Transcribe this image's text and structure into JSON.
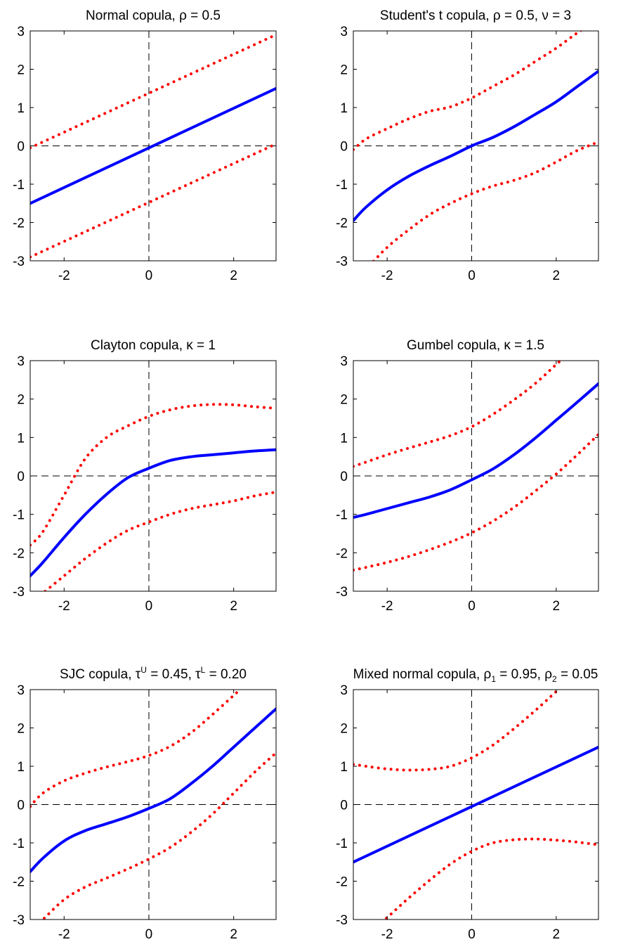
{
  "colors": {
    "mean": "#0000ff",
    "bands": "#ff0000",
    "axes": "#000000",
    "reference": "#000000"
  },
  "chart_data": [
    {
      "type": "line",
      "title": {
        "parts": [
          {
            "text": "Normal copula,  ρ = 0.5"
          }
        ]
      },
      "xlim": [
        -2.8,
        3
      ],
      "ylim": [
        -3,
        3
      ],
      "xticks": [
        -2,
        0,
        2
      ],
      "yticks": [
        -3,
        -2,
        -1,
        0,
        1,
        2,
        3
      ],
      "grid": false,
      "reference_lines": {
        "x": 0,
        "y": 0,
        "style": "dashed"
      },
      "series": [
        {
          "style": "solid",
          "color": "#0000ff",
          "x": [
            -2.8,
            3
          ],
          "y": [
            -1.5,
            1.5
          ]
        },
        {
          "style": "dotted",
          "color": "#ff0000",
          "x": [
            -2.8,
            3
          ],
          "y": [
            -0.05,
            2.9
          ]
        },
        {
          "style": "dotted",
          "color": "#ff0000",
          "x": [
            -2.8,
            3
          ],
          "y": [
            -2.9,
            0.05
          ]
        }
      ]
    },
    {
      "type": "line",
      "title": {
        "parts": [
          {
            "text": "Student's t copula,  ρ = 0.5,  ν = 3"
          }
        ]
      },
      "xlim": [
        -2.8,
        3
      ],
      "ylim": [
        -3,
        3
      ],
      "xticks": [
        -2,
        0,
        2
      ],
      "yticks": [
        -3,
        -2,
        -1,
        0,
        1,
        2,
        3
      ],
      "grid": false,
      "reference_lines": {
        "x": 0,
        "y": 0,
        "style": "dashed"
      },
      "series": [
        {
          "style": "solid",
          "color": "#0000ff",
          "x": [
            -2.8,
            -2.5,
            -2,
            -1.5,
            -1,
            -0.5,
            0,
            0.5,
            1,
            1.5,
            2,
            2.5,
            3
          ],
          "y": [
            -1.95,
            -1.6,
            -1.15,
            -0.8,
            -0.52,
            -0.27,
            0,
            0.22,
            0.5,
            0.82,
            1.15,
            1.55,
            1.95
          ]
        },
        {
          "style": "dotted",
          "color": "#ff0000",
          "x": [
            -2.8,
            -2.5,
            -2,
            -1.5,
            -1,
            -0.5,
            0,
            0.5,
            1,
            1.5,
            2,
            2.5,
            3
          ],
          "y": [
            -0.1,
            0.18,
            0.45,
            0.7,
            0.9,
            1.02,
            1.25,
            1.55,
            1.85,
            2.2,
            2.55,
            2.95,
            3.3
          ]
        },
        {
          "style": "dotted",
          "color": "#ff0000",
          "x": [
            -2.8,
            -2.5,
            -2,
            -1.5,
            -1,
            -0.5,
            0,
            0.5,
            1,
            1.5,
            2,
            2.5,
            3
          ],
          "y": [
            -3.4,
            -3.2,
            -2.65,
            -2.2,
            -1.8,
            -1.5,
            -1.25,
            -1.05,
            -0.9,
            -0.7,
            -0.42,
            -0.12,
            0.1
          ]
        }
      ]
    },
    {
      "type": "line",
      "title": {
        "parts": [
          {
            "text": "Clayton copula,  κ = 1"
          }
        ]
      },
      "xlim": [
        -2.8,
        3
      ],
      "ylim": [
        -3,
        3
      ],
      "xticks": [
        -2,
        0,
        2
      ],
      "yticks": [
        -3,
        -2,
        -1,
        0,
        1,
        2,
        3
      ],
      "grid": false,
      "reference_lines": {
        "x": 0,
        "y": 0,
        "style": "dashed"
      },
      "series": [
        {
          "style": "solid",
          "color": "#0000ff",
          "x": [
            -2.8,
            -2.5,
            -2,
            -1.5,
            -1,
            -0.5,
            0,
            0.5,
            1,
            1.5,
            2,
            2.5,
            3
          ],
          "y": [
            -2.6,
            -2.25,
            -1.6,
            -1.0,
            -0.48,
            -0.05,
            0.2,
            0.4,
            0.5,
            0.55,
            0.6,
            0.65,
            0.68
          ]
        },
        {
          "style": "dotted",
          "color": "#ff0000",
          "x": [
            -2.8,
            -2.5,
            -2,
            -1.5,
            -1,
            -0.5,
            0,
            0.5,
            1,
            1.5,
            2,
            2.5,
            3
          ],
          "y": [
            -1.8,
            -1.45,
            -0.5,
            0.45,
            1.0,
            1.3,
            1.55,
            1.72,
            1.82,
            1.86,
            1.85,
            1.8,
            1.76
          ]
        },
        {
          "style": "dotted",
          "color": "#ff0000",
          "x": [
            -2.8,
            -2.5,
            -2,
            -1.5,
            -1,
            -0.5,
            0,
            0.5,
            1,
            1.5,
            2,
            2.5,
            3
          ],
          "y": [
            -3.3,
            -3.05,
            -2.6,
            -2.15,
            -1.75,
            -1.42,
            -1.2,
            -1.0,
            -0.85,
            -0.75,
            -0.65,
            -0.52,
            -0.42
          ]
        }
      ]
    },
    {
      "type": "line",
      "title": {
        "parts": [
          {
            "text": "Gumbel copula,  κ = 1.5"
          }
        ]
      },
      "xlim": [
        -2.8,
        3
      ],
      "ylim": [
        -3,
        3
      ],
      "xticks": [
        -2,
        0,
        2
      ],
      "yticks": [
        -3,
        -2,
        -1,
        0,
        1,
        2,
        3
      ],
      "grid": false,
      "reference_lines": {
        "x": 0,
        "y": 0,
        "style": "dashed"
      },
      "series": [
        {
          "style": "solid",
          "color": "#0000ff",
          "x": [
            -2.8,
            -2.5,
            -2,
            -1.5,
            -1,
            -0.5,
            0,
            0.5,
            1,
            1.5,
            2,
            2.5,
            3
          ],
          "y": [
            -1.08,
            -1.0,
            -0.85,
            -0.7,
            -0.55,
            -0.36,
            -0.1,
            0.18,
            0.55,
            0.98,
            1.45,
            1.92,
            2.4
          ]
        },
        {
          "style": "dotted",
          "color": "#ff0000",
          "x": [
            -2.8,
            -2.5,
            -2,
            -1.5,
            -1,
            -0.5,
            0,
            0.5,
            1,
            1.5,
            2,
            2.5,
            3
          ],
          "y": [
            0.25,
            0.36,
            0.55,
            0.72,
            0.88,
            1.05,
            1.28,
            1.6,
            1.98,
            2.4,
            2.9,
            3.4,
            3.9
          ]
        },
        {
          "style": "dotted",
          "color": "#ff0000",
          "x": [
            -2.8,
            -2.5,
            -2,
            -1.5,
            -1,
            -0.5,
            0,
            0.5,
            1,
            1.5,
            2,
            2.5,
            3
          ],
          "y": [
            -2.45,
            -2.38,
            -2.25,
            -2.1,
            -1.92,
            -1.72,
            -1.48,
            -1.18,
            -0.82,
            -0.4,
            0.05,
            0.55,
            1.08
          ]
        }
      ]
    },
    {
      "type": "line",
      "title": {
        "parts": [
          {
            "text": "SJC copula,  τ"
          },
          {
            "text": "U",
            "baseline": "super"
          },
          {
            "text": " = 0.45,  τ"
          },
          {
            "text": "L",
            "baseline": "super"
          },
          {
            "text": " = 0.20"
          }
        ]
      },
      "xlim": [
        -2.8,
        3
      ],
      "ylim": [
        -3,
        3
      ],
      "xticks": [
        -2,
        0,
        2
      ],
      "yticks": [
        -3,
        -2,
        -1,
        0,
        1,
        2,
        3
      ],
      "grid": false,
      "reference_lines": {
        "x": 0,
        "y": 0,
        "style": "dashed"
      },
      "series": [
        {
          "style": "solid",
          "color": "#0000ff",
          "x": [
            -2.8,
            -2.5,
            -2,
            -1.5,
            -1,
            -0.5,
            0,
            0.5,
            1,
            1.5,
            2,
            2.5,
            3
          ],
          "y": [
            -1.75,
            -1.4,
            -0.95,
            -0.68,
            -0.5,
            -0.32,
            -0.1,
            0.15,
            0.55,
            1.0,
            1.5,
            2.0,
            2.5
          ]
        },
        {
          "style": "dotted",
          "color": "#ff0000",
          "x": [
            -2.8,
            -2.5,
            -2,
            -1.5,
            -1,
            -0.5,
            0,
            0.5,
            1,
            1.5,
            2,
            2.5,
            3
          ],
          "y": [
            -0.05,
            0.3,
            0.62,
            0.82,
            0.98,
            1.12,
            1.28,
            1.52,
            1.88,
            2.35,
            2.85,
            3.35,
            3.85
          ]
        },
        {
          "style": "dotted",
          "color": "#ff0000",
          "x": [
            -2.8,
            -2.5,
            -2,
            -1.5,
            -1,
            -0.5,
            0,
            0.5,
            1,
            1.5,
            2,
            2.5,
            3
          ],
          "y": [
            -3.3,
            -3.0,
            -2.48,
            -2.15,
            -1.92,
            -1.68,
            -1.42,
            -1.12,
            -0.72,
            -0.25,
            0.3,
            0.85,
            1.35
          ]
        }
      ]
    },
    {
      "type": "line",
      "title": {
        "parts": [
          {
            "text": "Mixed normal copula,  ρ"
          },
          {
            "text": "1",
            "baseline": "sub"
          },
          {
            "text": " = 0.95,  ρ"
          },
          {
            "text": "2",
            "baseline": "sub"
          },
          {
            "text": " = 0.05"
          }
        ]
      },
      "xlim": [
        -2.8,
        3
      ],
      "ylim": [
        -3,
        3
      ],
      "xticks": [
        -2,
        0,
        2
      ],
      "yticks": [
        -3,
        -2,
        -1,
        0,
        1,
        2,
        3
      ],
      "grid": false,
      "reference_lines": {
        "x": 0,
        "y": 0,
        "style": "dashed"
      },
      "series": [
        {
          "style": "solid",
          "color": "#0000ff",
          "x": [
            -2.8,
            3
          ],
          "y": [
            -1.5,
            1.5
          ]
        },
        {
          "style": "dotted",
          "color": "#ff0000",
          "x": [
            -2.8,
            -2.5,
            -2,
            -1.5,
            -1,
            -0.5,
            0,
            0.5,
            1,
            1.5,
            2,
            2.5,
            3
          ],
          "y": [
            1.05,
            1.0,
            0.93,
            0.9,
            0.92,
            1.0,
            1.22,
            1.55,
            1.98,
            2.45,
            2.95,
            3.45,
            3.95
          ]
        },
        {
          "style": "dotted",
          "color": "#ff0000",
          "x": [
            -2.8,
            -2.5,
            -2,
            -1.5,
            -1,
            -0.5,
            0,
            0.5,
            1,
            1.5,
            2,
            2.5,
            3
          ],
          "y": [
            -3.95,
            -3.45,
            -2.95,
            -2.45,
            -1.98,
            -1.55,
            -1.22,
            -1.0,
            -0.92,
            -0.9,
            -0.93,
            -0.98,
            -1.05
          ]
        }
      ]
    }
  ]
}
